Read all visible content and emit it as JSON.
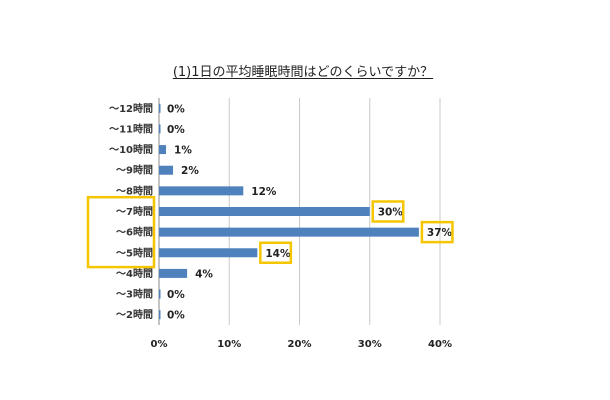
{
  "chart_data": {
    "type": "bar",
    "orientation": "horizontal",
    "title": "(1)1日の平均睡眠時間はどのくらいですか？",
    "categories": [
      "～12時間",
      "～11時間",
      "～10時間",
      "～9時間",
      "～8時間",
      "～7時間",
      "～6時間",
      "～5時間",
      "～4時間",
      "～3時間",
      "～2時間"
    ],
    "values": [
      0,
      0,
      1,
      2,
      12,
      30,
      37,
      14,
      4,
      0,
      0
    ],
    "data_labels": [
      "0%",
      "0%",
      "1%",
      "2%",
      "12%",
      "30%",
      "37%",
      "14%",
      "4%",
      "0%",
      "0%"
    ],
    "xlim": [
      0,
      40
    ],
    "x_ticks": [
      "0%",
      "10%",
      "20%",
      "30%",
      "40%"
    ],
    "grid": "vertical",
    "bar_color": "#4f81bd",
    "highlight_color": "#f5c500",
    "highlighted_categories": [
      "～7時間",
      "～6時間",
      "～5時間"
    ]
  }
}
